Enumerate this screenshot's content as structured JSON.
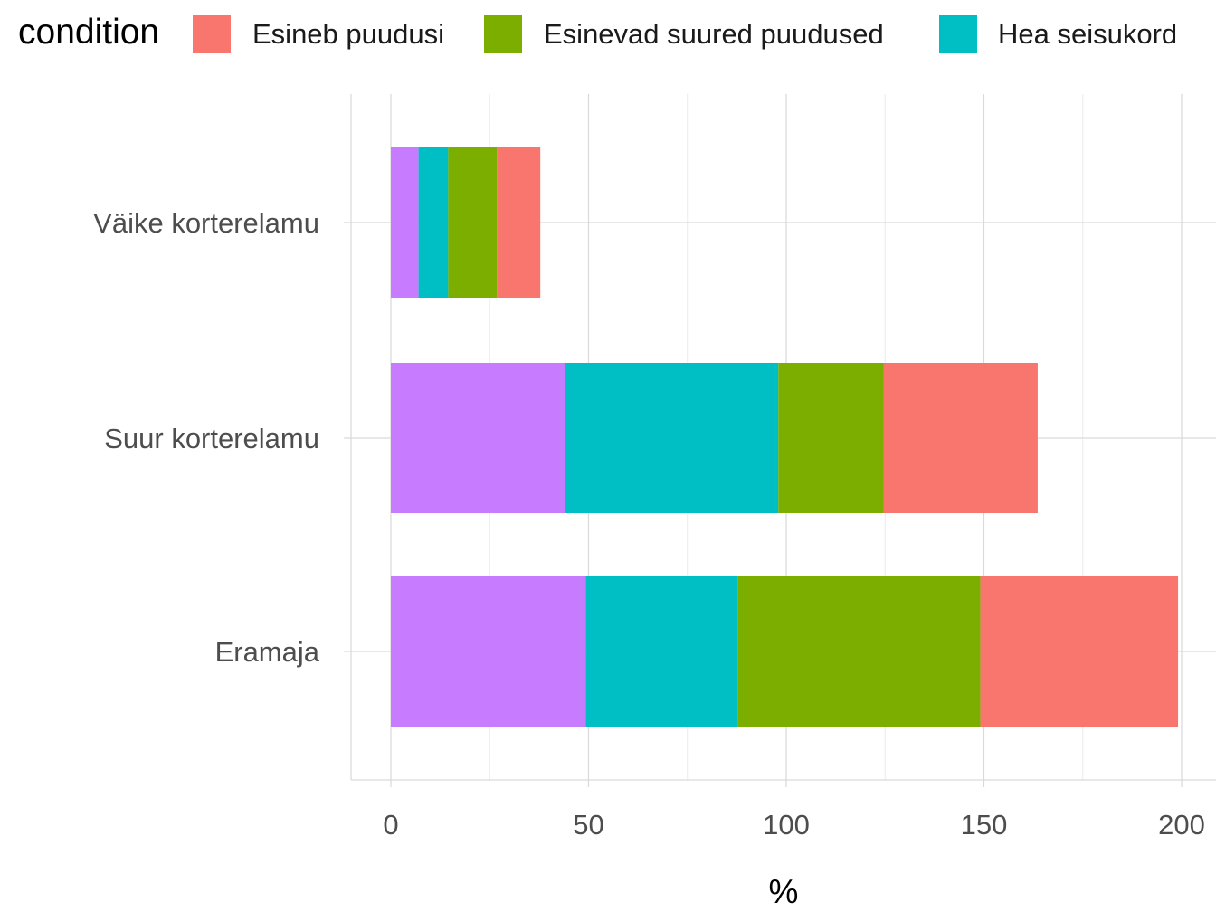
{
  "chart_data": {
    "type": "bar",
    "orientation": "horizontal",
    "stacked": true,
    "xlabel": "%",
    "ylabel": "",
    "xlim": [
      -10,
      200
    ],
    "xticks": [
      0,
      50,
      100,
      150,
      200
    ],
    "grid": true,
    "legend": {
      "title": "condition",
      "position": "top",
      "entries": [
        {
          "label": "Esineb puudusi",
          "color": "#F8766D"
        },
        {
          "label": "Esinevad suured puudused",
          "color": "#7CAE00"
        },
        {
          "label": "Hea seisukord",
          "color": "#00BFC4"
        }
      ]
    },
    "categories": [
      "Väike korterelamu",
      "Suur korterelamu",
      "Eramaja"
    ],
    "series": [
      {
        "color": "#C77CFF",
        "values": [
          7,
          44,
          49.3
        ]
      },
      {
        "name": "Hea seisukord",
        "color": "#00BFC4",
        "values": [
          7.5,
          54,
          38.5
        ]
      },
      {
        "name": "Esinevad suured puudused",
        "color": "#7CAE00",
        "values": [
          12.3,
          26.6,
          61.3
        ]
      },
      {
        "name": "Esineb puudusi",
        "color": "#F8766D",
        "values": [
          11,
          39,
          50
        ]
      }
    ]
  }
}
